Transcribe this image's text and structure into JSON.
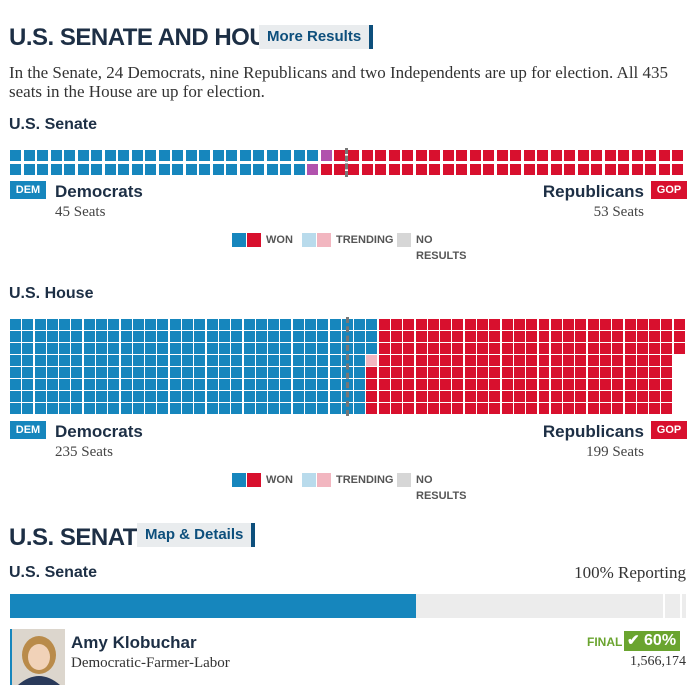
{
  "header": {
    "title": "U.S. SENATE AND HOUSE",
    "more_results": "More Results"
  },
  "intro": "In the Senate, 24 Democrats, nine Republicans and two Independents are up for election. All 435 seats in the House are up for election.",
  "colors": {
    "dem": "#1686bd",
    "rep": "#d8102e",
    "ind": "#b152ad",
    "dem_trending": "#b9dbec",
    "rep_trending": "#f2b6c0",
    "no_results": "#d6d6d6",
    "check_green": "#6aa42f"
  },
  "senate_chart": {
    "title": "U.S. Senate",
    "dem_badge": "DEM",
    "rep_badge": "GOP",
    "dem_label": "Democrats",
    "rep_label": "Republicans",
    "dem_seats": 45,
    "ind_seats": 2,
    "rep_seats": 53,
    "dem_seats_text": "45 Seats",
    "rep_seats_text": "53 Seats"
  },
  "house_chart": {
    "title": "U.S. House",
    "dem_badge": "DEM",
    "rep_badge": "GOP",
    "dem_label": "Democrats",
    "rep_label": "Republicans",
    "dem_seats": 235,
    "rep_trending_seats": 1,
    "rep_seats": 199,
    "dem_seats_text": "235 Seats",
    "rep_seats_text": "199 Seats"
  },
  "legend": {
    "won": "WON",
    "trending": "TRENDING",
    "no_results": "NO RESULTS"
  },
  "senate_section": {
    "title": "U.S. SENATE",
    "map_details": "Map & Details",
    "race_title": "U.S. Senate",
    "reporting": "100% Reporting",
    "bar": {
      "dem_fraction": 0.6,
      "other_fraction": 0.4
    },
    "candidate": {
      "name": "Amy Klobuchar",
      "party": "Democratic-Farmer-Labor",
      "status": "FINAL",
      "percent": "60%",
      "votes": "1,566,174",
      "photo_icon": "candidate-photo"
    }
  }
}
